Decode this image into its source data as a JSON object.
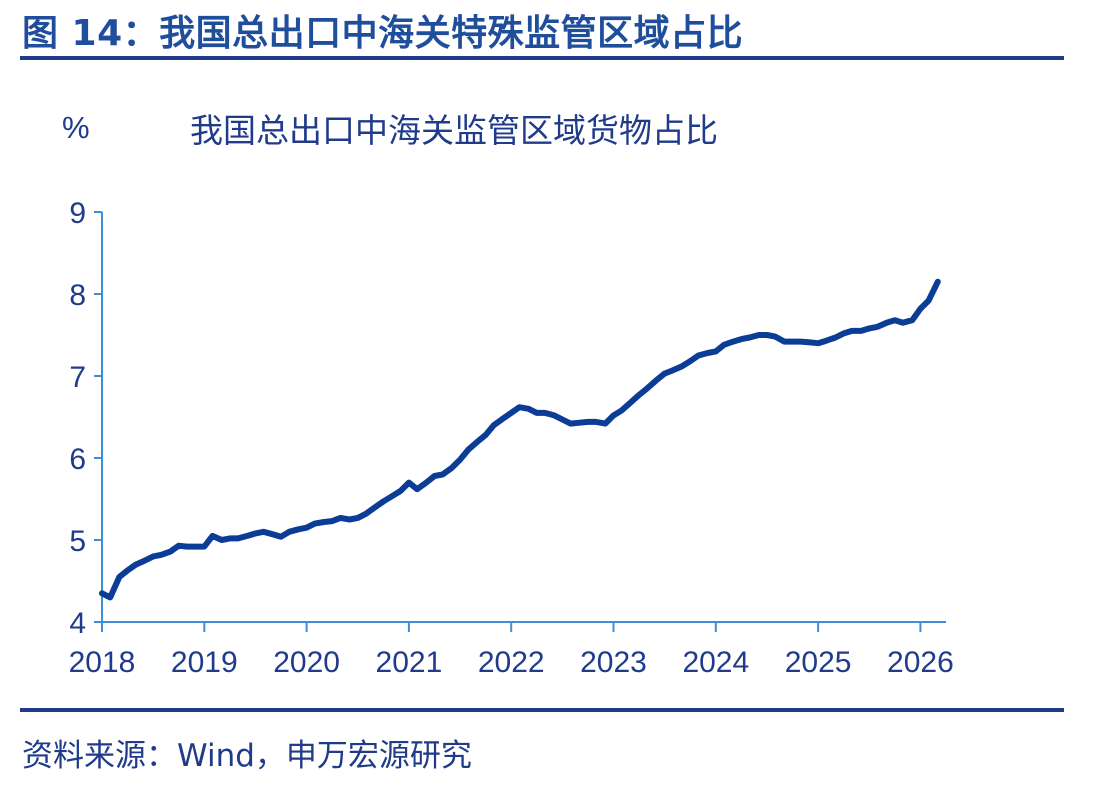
{
  "figure_title": "图 14：我国总出口中海关特殊监管区域占比",
  "source": "资料来源：Wind，申万宏源研究",
  "colors": {
    "accent": "#1f4e9c",
    "line": "#0b3c96",
    "axis": "#3f8fd8"
  },
  "chart_data": {
    "type": "line",
    "title": "我国总出口中海关监管区域货物占比",
    "ylabel": "%",
    "xlabel": "",
    "xlim": [
      2018,
      2026.25
    ],
    "ylim": [
      4,
      9
    ],
    "yticks": [
      4,
      5,
      6,
      7,
      8,
      9
    ],
    "xticks": [
      2018,
      2019,
      2020,
      2021,
      2022,
      2023,
      2024,
      2025,
      2026
    ],
    "grid": false,
    "legend": "none",
    "series": [
      {
        "x": [
          2018.0,
          2018.08,
          2018.17,
          2018.25,
          2018.33,
          2018.42,
          2018.5,
          2018.58,
          2018.67,
          2018.75,
          2018.83,
          2018.92,
          2019.0,
          2019.08,
          2019.17,
          2019.25,
          2019.33,
          2019.42,
          2019.5,
          2019.58,
          2019.67,
          2019.75,
          2019.83,
          2019.92,
          2020.0,
          2020.08,
          2020.17,
          2020.25,
          2020.33,
          2020.42,
          2020.5,
          2020.58,
          2020.67,
          2020.75,
          2020.83,
          2020.92,
          2021.0,
          2021.08,
          2021.17,
          2021.25,
          2021.33,
          2021.42,
          2021.5,
          2021.58,
          2021.67,
          2021.75,
          2021.83,
          2021.92,
          2022.0,
          2022.08,
          2022.17,
          2022.25,
          2022.33,
          2022.42,
          2022.5,
          2022.58,
          2022.67,
          2022.75,
          2022.83,
          2022.92,
          2023.0,
          2023.08,
          2023.17,
          2023.25,
          2023.33,
          2023.42,
          2023.5,
          2023.58,
          2023.67,
          2023.75,
          2023.83,
          2023.92,
          2024.0,
          2024.08,
          2024.17,
          2024.25,
          2024.33,
          2024.42,
          2024.5,
          2024.58,
          2024.67,
          2024.75,
          2024.83,
          2024.92,
          2025.0,
          2025.08,
          2025.17,
          2025.25,
          2025.33,
          2025.42,
          2025.5,
          2025.58,
          2025.67,
          2025.75,
          2025.83,
          2025.92,
          2026.0,
          2026.08,
          2026.17
        ],
        "values": [
          4.35,
          4.3,
          4.55,
          4.63,
          4.7,
          4.75,
          4.8,
          4.82,
          4.86,
          4.93,
          4.92,
          4.92,
          4.92,
          5.05,
          5.0,
          5.02,
          5.02,
          5.05,
          5.08,
          5.1,
          5.07,
          5.04,
          5.1,
          5.13,
          5.15,
          5.2,
          5.22,
          5.23,
          5.27,
          5.25,
          5.27,
          5.32,
          5.4,
          5.47,
          5.53,
          5.6,
          5.7,
          5.62,
          5.7,
          5.78,
          5.8,
          5.88,
          5.98,
          6.1,
          6.2,
          6.28,
          6.4,
          6.48,
          6.55,
          6.62,
          6.6,
          6.55,
          6.55,
          6.52,
          6.47,
          6.42,
          6.43,
          6.44,
          6.44,
          6.42,
          6.52,
          6.58,
          6.68,
          6.77,
          6.85,
          6.95,
          7.03,
          7.07,
          7.12,
          7.18,
          7.25,
          7.28,
          7.3,
          7.38,
          7.42,
          7.45,
          7.47,
          7.5,
          7.5,
          7.48,
          7.42,
          7.42,
          7.42,
          7.41,
          7.4,
          7.43,
          7.47,
          7.52,
          7.55,
          7.55,
          7.58,
          7.6,
          7.65,
          7.68,
          7.65,
          7.68,
          7.82,
          7.92,
          8.15
        ]
      }
    ]
  }
}
